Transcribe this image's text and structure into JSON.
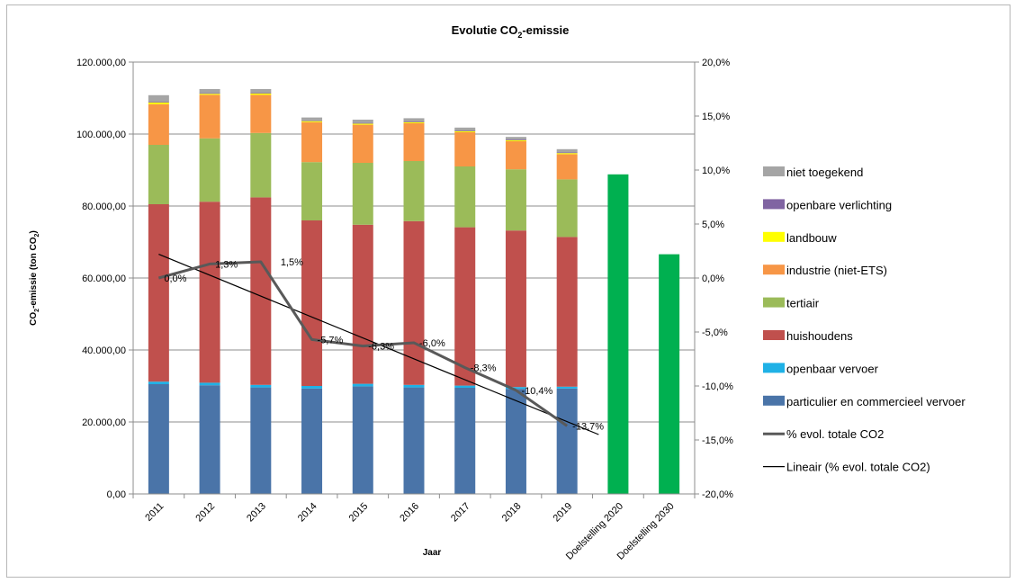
{
  "chart_data": {
    "type": "bar",
    "stacked": true,
    "title": "Evolutie CO2-emissie",
    "title_parts": {
      "main": "Evolutie CO",
      "sub": "2",
      "tail": "-emissie"
    },
    "xlabel": "Jaar",
    "ylabel_parts": {
      "main": "CO",
      "sub": "2",
      "mid": "-emissie (ton CO",
      "sub2": "2",
      "tail": ")"
    },
    "categories": [
      "2011",
      "2012",
      "2013",
      "2014",
      "2015",
      "2016",
      "2017",
      "2018",
      "2019",
      "Doelstelling 2020",
      "Doelstelling 2030"
    ],
    "ylim": [
      0,
      120000
    ],
    "y_ticks": [
      0,
      20000,
      40000,
      60000,
      80000,
      100000,
      120000
    ],
    "y_tick_labels": [
      "0,00",
      "20.000,00",
      "40.000,00",
      "60.000,00",
      "80.000,00",
      "100.000,00",
      "120.000,00"
    ],
    "y2lim": [
      -20,
      20
    ],
    "y2_ticks": [
      -20,
      -15,
      -10,
      -5,
      0,
      5,
      10,
      15,
      20
    ],
    "y2_tick_labels": [
      "-20,0%",
      "-15,0%",
      "-10,0%",
      "-5,0%",
      "0,0%",
      "5,0%",
      "10,0%",
      "15,0%",
      "20,0%"
    ],
    "grid": true,
    "legend_position": "right",
    "series": [
      {
        "name": "particulier en commercieel vervoer",
        "color": "#4a74a8",
        "values": [
          30500,
          30200,
          29600,
          29300,
          29900,
          29600,
          29500,
          29200,
          29300,
          0,
          0
        ]
      },
      {
        "name": "openbaar vervoer",
        "color": "#1fb1e6",
        "values": [
          700,
          700,
          700,
          700,
          700,
          700,
          600,
          500,
          500,
          0,
          0
        ]
      },
      {
        "name": "huishoudens",
        "color": "#c0504d",
        "values": [
          49300,
          50300,
          52100,
          46000,
          44200,
          45500,
          44000,
          43500,
          41600,
          0,
          0
        ]
      },
      {
        "name": "tertiair",
        "color": "#9bbb59",
        "values": [
          16500,
          17600,
          17900,
          16200,
          17200,
          16700,
          16900,
          17000,
          16000,
          0,
          0
        ]
      },
      {
        "name": "industrie (niet-ETS)",
        "color": "#f79646",
        "values": [
          11300,
          12100,
          10600,
          11100,
          10600,
          10500,
          9500,
          7800,
          7000,
          0,
          0
        ]
      },
      {
        "name": "landbouw",
        "color": "#ffff00",
        "values": [
          500,
          300,
          400,
          300,
          300,
          300,
          300,
          300,
          300,
          0,
          0
        ]
      },
      {
        "name": "openbare verlichting",
        "color": "#8064a2",
        "values": [
          200,
          200,
          200,
          200,
          200,
          200,
          200,
          200,
          200,
          0,
          0
        ]
      },
      {
        "name": "niet toegekend",
        "color": "#a5a5a5",
        "values": [
          1800,
          1100,
          1000,
          800,
          900,
          900,
          800,
          700,
          900,
          0,
          0
        ]
      }
    ],
    "target_series": {
      "color": "#00b050",
      "values": [
        null,
        null,
        null,
        null,
        null,
        null,
        null,
        null,
        null,
        88800,
        66600
      ]
    },
    "line_series": {
      "name": "% evol. totale CO2",
      "color": "#595959",
      "axis": "right",
      "values": [
        0.0,
        1.3,
        1.5,
        -5.7,
        -6.3,
        -6.0,
        -8.3,
        -10.4,
        -13.7
      ],
      "labels": [
        "0,0%",
        "1,3%",
        "1,5%",
        "-5,7%",
        "-6,3%",
        "-6,0%",
        "-8,3%",
        "-10,4%",
        "-13,7%"
      ]
    },
    "trend_series": {
      "name": "Lineair (% evol. totale CO2)",
      "color": "#000000",
      "axis": "right",
      "start_value": 2.2,
      "end_value": -14.5
    },
    "legend": [
      {
        "name": "niet toegekend",
        "kind": "box",
        "color": "#a5a5a5"
      },
      {
        "name": "openbare verlichting",
        "kind": "box",
        "color": "#8064a2"
      },
      {
        "name": "landbouw",
        "kind": "box",
        "color": "#ffff00"
      },
      {
        "name": "industrie (niet-ETS)",
        "kind": "box",
        "color": "#f79646"
      },
      {
        "name": "tertiair",
        "kind": "box",
        "color": "#9bbb59"
      },
      {
        "name": "huishoudens",
        "kind": "box",
        "color": "#c0504d"
      },
      {
        "name": "openbaar vervoer",
        "kind": "box",
        "color": "#1fb1e6"
      },
      {
        "name": "particulier en commercieel vervoer",
        "kind": "box",
        "color": "#4a74a8"
      },
      {
        "name": "% evol. totale CO2",
        "kind": "thickline",
        "color": "#595959"
      },
      {
        "name": "Lineair (% evol. totale CO2)",
        "kind": "thinline",
        "color": "#000000"
      }
    ]
  }
}
